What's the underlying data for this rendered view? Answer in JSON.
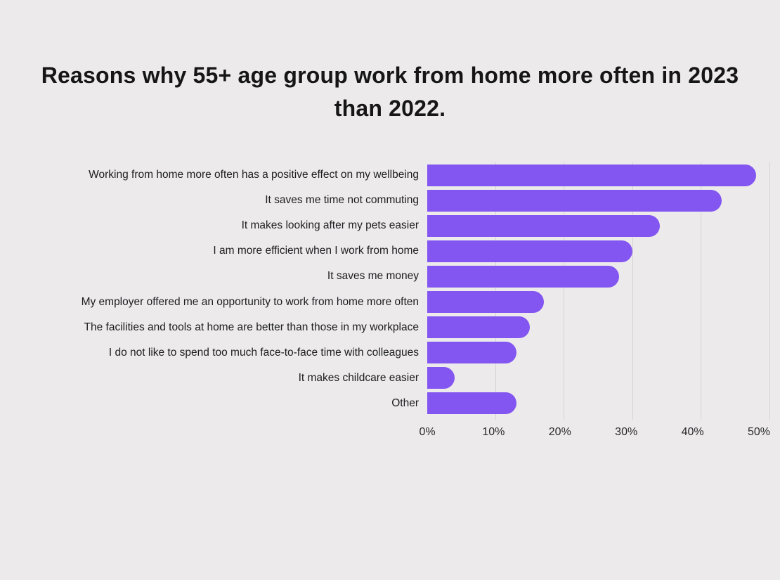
{
  "title": {
    "line1": "Reasons why 55+ age group work from home more often in 2023",
    "line2": "than 2022."
  },
  "chart_data": {
    "type": "bar",
    "orientation": "horizontal",
    "title": "Reasons why 55+ age group work from home more often in 2023 than 2022.",
    "categories": [
      "Working from home more often has a positive effect on my wellbeing",
      "It saves me time not commuting",
      "It makes looking after my pets easier",
      "I am more efficient when I work from home",
      "It saves me money",
      "My employer offered me an opportunity to work from home more often",
      "The facilities and tools at home are better than those in my workplace",
      "I do not like to spend too much face-to-face time with colleagues",
      "It makes childcare easier",
      "Other"
    ],
    "values": [
      48,
      43,
      34,
      30,
      28,
      17,
      15,
      13,
      4,
      13
    ],
    "unit": "%",
    "xlabel": "",
    "ylabel": "",
    "xlim": [
      0,
      50
    ],
    "x_ticks": [
      "0%",
      "10%",
      "20%",
      "30%",
      "40%",
      "50%"
    ],
    "x_tick_values": [
      0,
      10,
      20,
      30,
      40,
      50
    ],
    "grid": true,
    "legend": false,
    "colors": {
      "bar": "#8456F1",
      "gridline": "#D6D3D5",
      "background": "#ECEAEB",
      "title_text": "#161616",
      "label_text": "#1D1D1F"
    }
  }
}
